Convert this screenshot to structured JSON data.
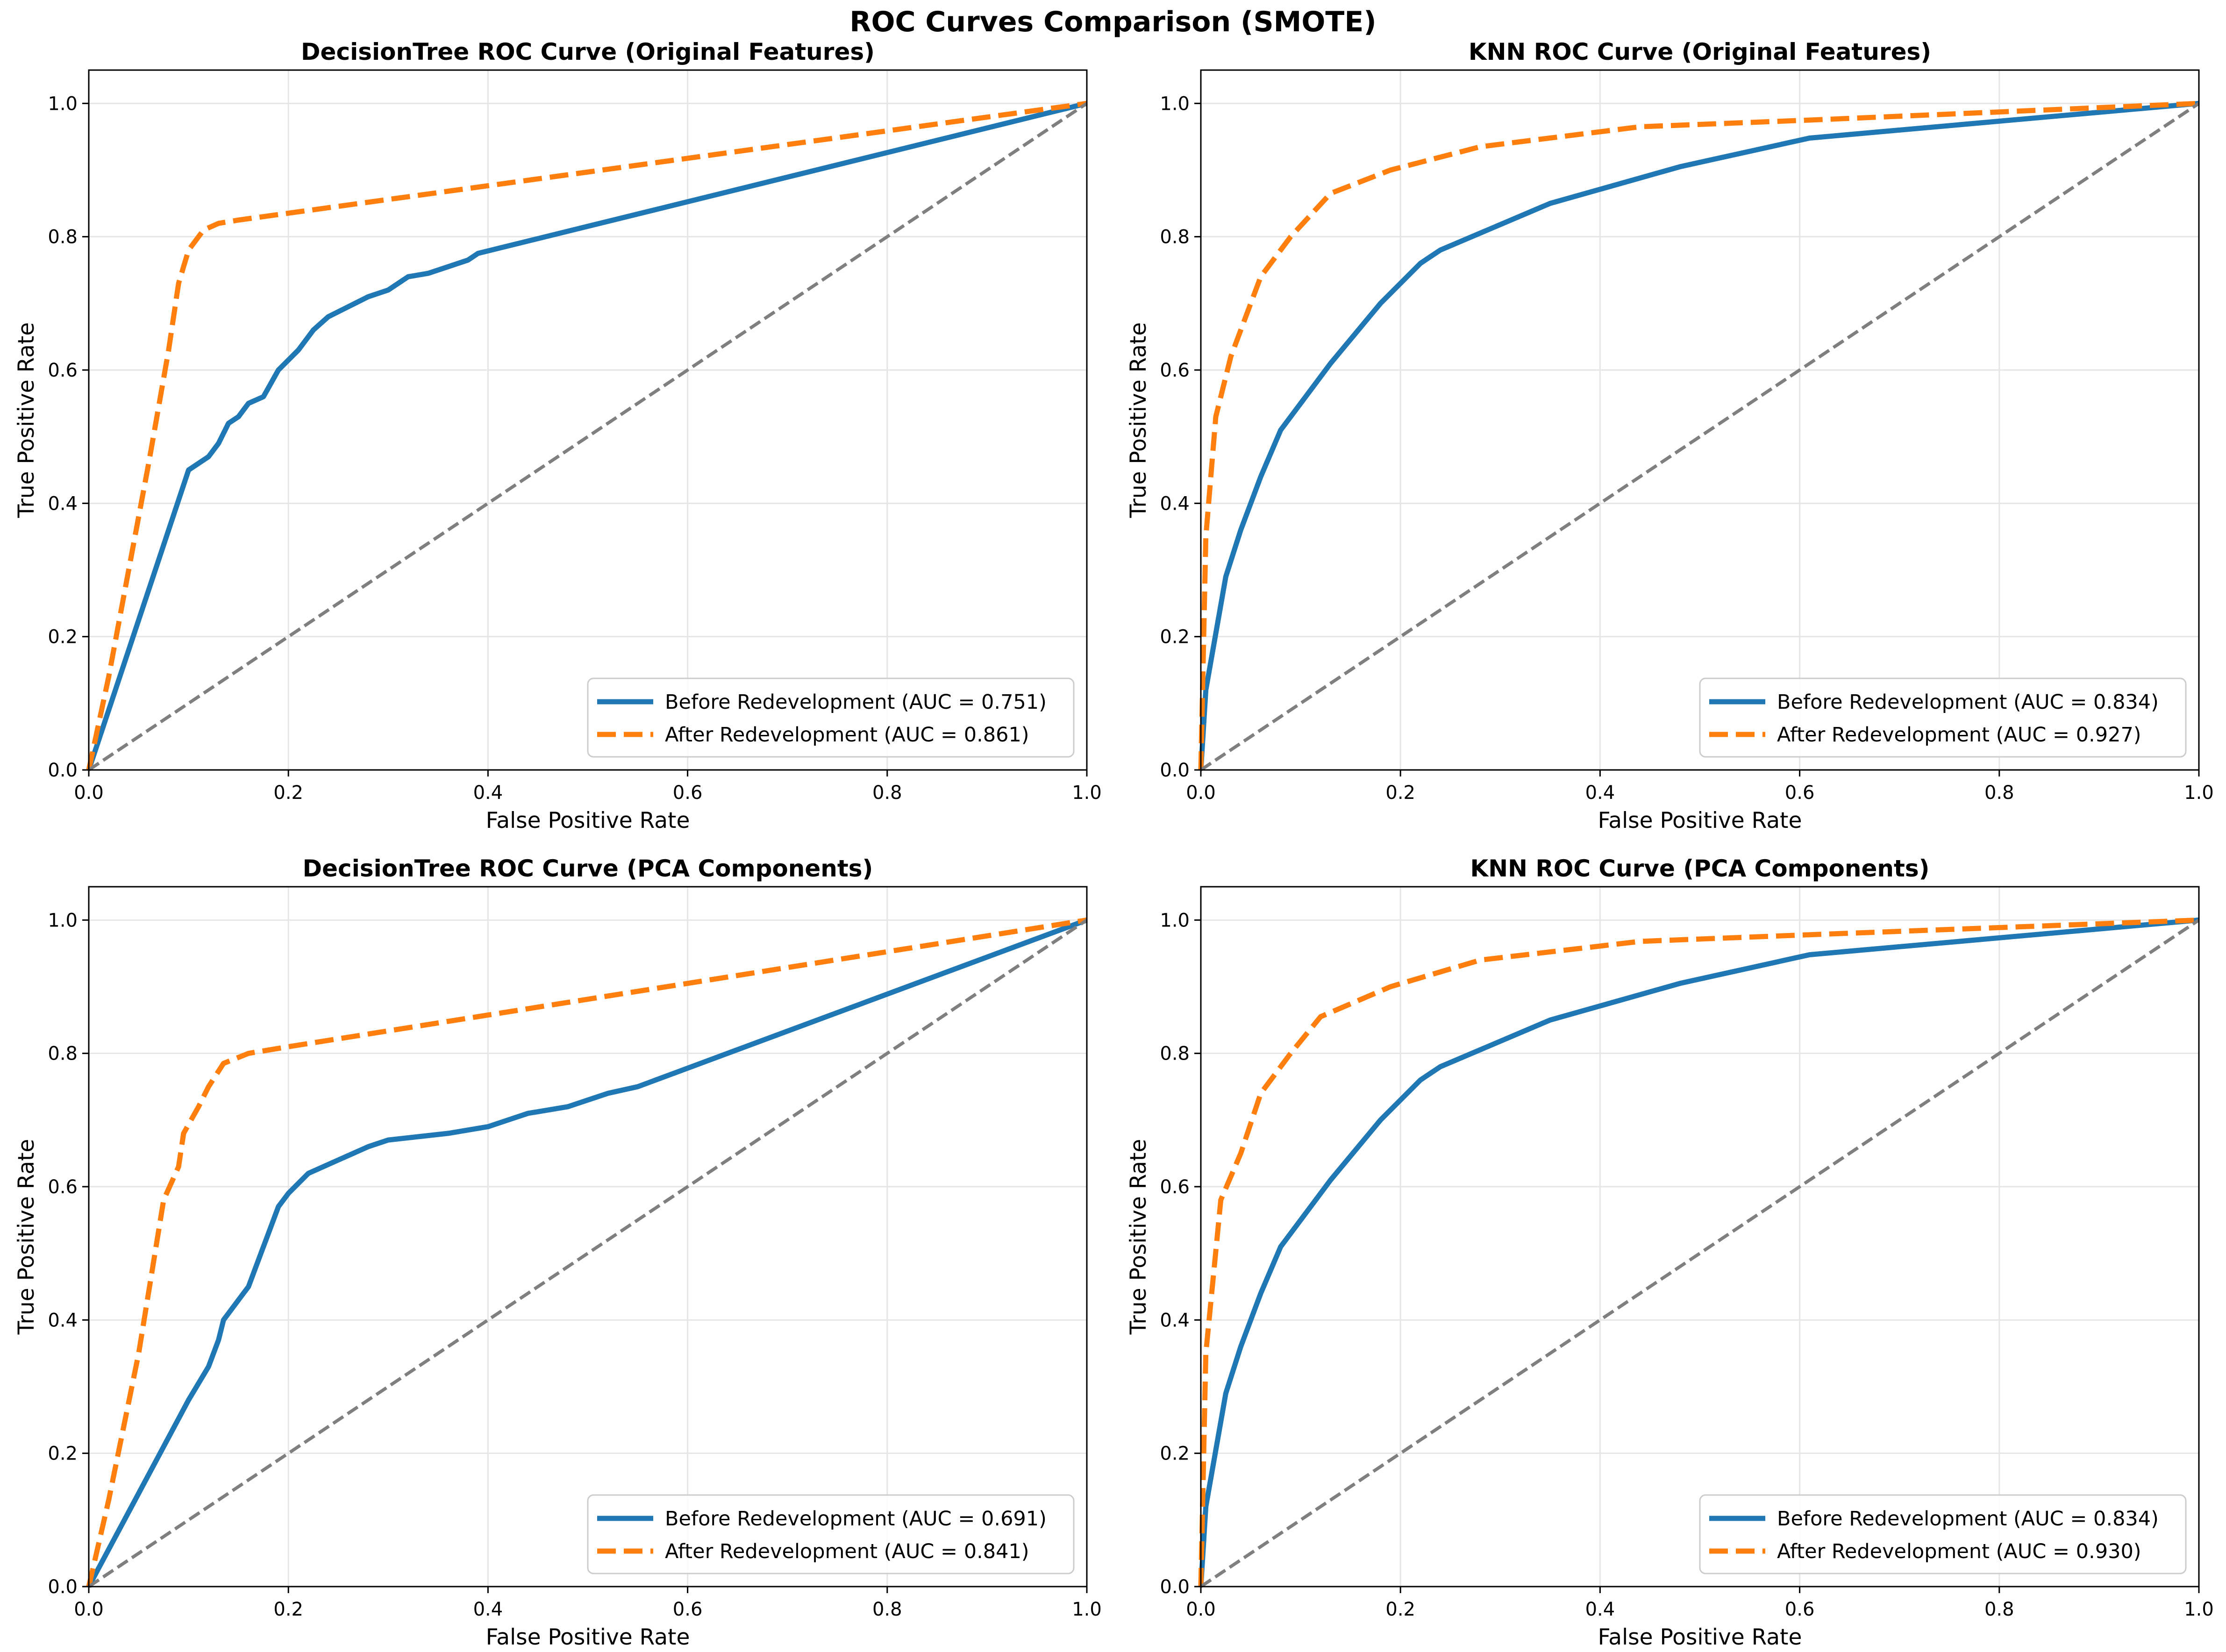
{
  "figure_title": "ROC Curves Comparison (SMOTE)",
  "colors": {
    "before": "#1f77b4",
    "after": "#ff7f0e",
    "chance": "#7f7f7f"
  },
  "chart_data": [
    {
      "type": "line",
      "title": "DecisionTree ROC Curve (Original Features)",
      "xlabel": "False Positive Rate",
      "ylabel": "True Positive Rate",
      "xlim": [
        0,
        1
      ],
      "ylim": [
        0,
        1.05
      ],
      "xticks": [
        "0.0",
        "0.2",
        "0.4",
        "0.6",
        "0.8",
        "1.0"
      ],
      "yticks": [
        "0.0",
        "0.2",
        "0.4",
        "0.6",
        "0.8",
        "1.0"
      ],
      "grid": true,
      "legend_position": "lower right",
      "series": [
        {
          "name": "Before Redevelopment (AUC = 0.751)",
          "style": "solid",
          "points": [
            [
              0,
              0
            ],
            [
              0.1,
              0.45
            ],
            [
              0.12,
              0.47
            ],
            [
              0.13,
              0.49
            ],
            [
              0.14,
              0.52
            ],
            [
              0.15,
              0.53
            ],
            [
              0.16,
              0.55
            ],
            [
              0.175,
              0.56
            ],
            [
              0.19,
              0.6
            ],
            [
              0.21,
              0.63
            ],
            [
              0.225,
              0.66
            ],
            [
              0.24,
              0.68
            ],
            [
              0.26,
              0.695
            ],
            [
              0.28,
              0.71
            ],
            [
              0.3,
              0.72
            ],
            [
              0.32,
              0.74
            ],
            [
              0.34,
              0.745
            ],
            [
              0.36,
              0.755
            ],
            [
              0.38,
              0.765
            ],
            [
              0.39,
              0.775
            ],
            [
              1,
              1
            ]
          ]
        },
        {
          "name": "After Redevelopment (AUC = 0.861)",
          "style": "dashed",
          "points": [
            [
              0,
              0
            ],
            [
              0.02,
              0.14
            ],
            [
              0.04,
              0.3
            ],
            [
              0.06,
              0.46
            ],
            [
              0.08,
              0.63
            ],
            [
              0.09,
              0.73
            ],
            [
              0.1,
              0.78
            ],
            [
              0.115,
              0.81
            ],
            [
              0.13,
              0.82
            ],
            [
              0.15,
              0.825
            ],
            [
              1,
              1
            ]
          ]
        },
        {
          "name": "",
          "style": "chance",
          "points": [
            [
              0,
              0
            ],
            [
              1,
              1
            ]
          ]
        }
      ]
    },
    {
      "type": "line",
      "title": "KNN ROC Curve (Original Features)",
      "xlabel": "False Positive Rate",
      "ylabel": "True Positive Rate",
      "xlim": [
        0,
        1
      ],
      "ylim": [
        0,
        1.05
      ],
      "xticks": [
        "0.0",
        "0.2",
        "0.4",
        "0.6",
        "0.8",
        "1.0"
      ],
      "yticks": [
        "0.0",
        "0.2",
        "0.4",
        "0.6",
        "0.8",
        "1.0"
      ],
      "grid": true,
      "legend_position": "lower right",
      "series": [
        {
          "name": "Before Redevelopment (AUC = 0.834)",
          "style": "solid",
          "points": [
            [
              0,
              0
            ],
            [
              0.005,
              0.12
            ],
            [
              0.025,
              0.29
            ],
            [
              0.04,
              0.36
            ],
            [
              0.06,
              0.44
            ],
            [
              0.08,
              0.51
            ],
            [
              0.11,
              0.57
            ],
            [
              0.13,
              0.61
            ],
            [
              0.18,
              0.7
            ],
            [
              0.22,
              0.76
            ],
            [
              0.24,
              0.78
            ],
            [
              0.35,
              0.85
            ],
            [
              0.48,
              0.905
            ],
            [
              0.61,
              0.948
            ],
            [
              1,
              1
            ]
          ]
        },
        {
          "name": "After Redevelopment (AUC = 0.927)",
          "style": "dashed",
          "points": [
            [
              0,
              0
            ],
            [
              0.005,
              0.35
            ],
            [
              0.015,
              0.53
            ],
            [
              0.03,
              0.62
            ],
            [
              0.06,
              0.74
            ],
            [
              0.09,
              0.8
            ],
            [
              0.13,
              0.865
            ],
            [
              0.19,
              0.9
            ],
            [
              0.28,
              0.935
            ],
            [
              0.44,
              0.965
            ],
            [
              0.61,
              0.975
            ],
            [
              1,
              1
            ]
          ]
        },
        {
          "name": "",
          "style": "chance",
          "points": [
            [
              0,
              0
            ],
            [
              1,
              1
            ]
          ]
        }
      ]
    },
    {
      "type": "line",
      "title": "DecisionTree ROC Curve (PCA Components)",
      "xlabel": "False Positive Rate",
      "ylabel": "True Positive Rate",
      "xlim": [
        0,
        1
      ],
      "ylim": [
        0,
        1.05
      ],
      "xticks": [
        "0.0",
        "0.2",
        "0.4",
        "0.6",
        "0.8",
        "1.0"
      ],
      "yticks": [
        "0.0",
        "0.2",
        "0.4",
        "0.6",
        "0.8",
        "1.0"
      ],
      "grid": true,
      "legend_position": "lower right",
      "series": [
        {
          "name": "Before Redevelopment (AUC = 0.691)",
          "style": "solid",
          "points": [
            [
              0,
              0
            ],
            [
              0.1,
              0.28
            ],
            [
              0.12,
              0.33
            ],
            [
              0.13,
              0.37
            ],
            [
              0.135,
              0.4
            ],
            [
              0.15,
              0.43
            ],
            [
              0.16,
              0.45
            ],
            [
              0.17,
              0.49
            ],
            [
              0.18,
              0.53
            ],
            [
              0.19,
              0.57
            ],
            [
              0.2,
              0.59
            ],
            [
              0.22,
              0.62
            ],
            [
              0.25,
              0.64
            ],
            [
              0.28,
              0.66
            ],
            [
              0.3,
              0.67
            ],
            [
              0.33,
              0.675
            ],
            [
              0.36,
              0.68
            ],
            [
              0.4,
              0.69
            ],
            [
              0.42,
              0.7
            ],
            [
              0.44,
              0.71
            ],
            [
              0.48,
              0.72
            ],
            [
              0.52,
              0.74
            ],
            [
              0.55,
              0.75
            ],
            [
              1,
              1
            ]
          ]
        },
        {
          "name": "After Redevelopment (AUC = 0.841)",
          "style": "dashed",
          "points": [
            [
              0,
              0
            ],
            [
              0.02,
              0.13
            ],
            [
              0.05,
              0.35
            ],
            [
              0.075,
              0.58
            ],
            [
              0.09,
              0.63
            ],
            [
              0.095,
              0.68
            ],
            [
              0.11,
              0.72
            ],
            [
              0.12,
              0.75
            ],
            [
              0.135,
              0.785
            ],
            [
              0.16,
              0.8
            ],
            [
              0.2,
              0.81
            ],
            [
              1,
              1
            ]
          ]
        },
        {
          "name": "",
          "style": "chance",
          "points": [
            [
              0,
              0
            ],
            [
              1,
              1
            ]
          ]
        }
      ]
    },
    {
      "type": "line",
      "title": "KNN ROC Curve (PCA Components)",
      "xlabel": "False Positive Rate",
      "ylabel": "True Positive Rate",
      "xlim": [
        0,
        1
      ],
      "ylim": [
        0,
        1.05
      ],
      "xticks": [
        "0.0",
        "0.2",
        "0.4",
        "0.6",
        "0.8",
        "1.0"
      ],
      "yticks": [
        "0.0",
        "0.2",
        "0.4",
        "0.6",
        "0.8",
        "1.0"
      ],
      "grid": true,
      "legend_position": "lower right",
      "series": [
        {
          "name": "Before Redevelopment (AUC = 0.834)",
          "style": "solid",
          "points": [
            [
              0,
              0
            ],
            [
              0.005,
              0.12
            ],
            [
              0.025,
              0.29
            ],
            [
              0.04,
              0.36
            ],
            [
              0.06,
              0.44
            ],
            [
              0.08,
              0.51
            ],
            [
              0.11,
              0.57
            ],
            [
              0.13,
              0.61
            ],
            [
              0.18,
              0.7
            ],
            [
              0.22,
              0.76
            ],
            [
              0.24,
              0.78
            ],
            [
              0.35,
              0.85
            ],
            [
              0.48,
              0.905
            ],
            [
              0.61,
              0.948
            ],
            [
              1,
              1
            ]
          ]
        },
        {
          "name": "After Redevelopment (AUC = 0.930)",
          "style": "dashed",
          "points": [
            [
              0,
              0
            ],
            [
              0.005,
              0.35
            ],
            [
              0.02,
              0.58
            ],
            [
              0.04,
              0.65
            ],
            [
              0.06,
              0.74
            ],
            [
              0.09,
              0.8
            ],
            [
              0.12,
              0.855
            ],
            [
              0.19,
              0.9
            ],
            [
              0.28,
              0.94
            ],
            [
              0.44,
              0.968
            ],
            [
              0.61,
              0.978
            ],
            [
              1,
              1
            ]
          ]
        },
        {
          "name": "",
          "style": "chance",
          "points": [
            [
              0,
              0
            ],
            [
              1,
              1
            ]
          ]
        }
      ]
    }
  ]
}
